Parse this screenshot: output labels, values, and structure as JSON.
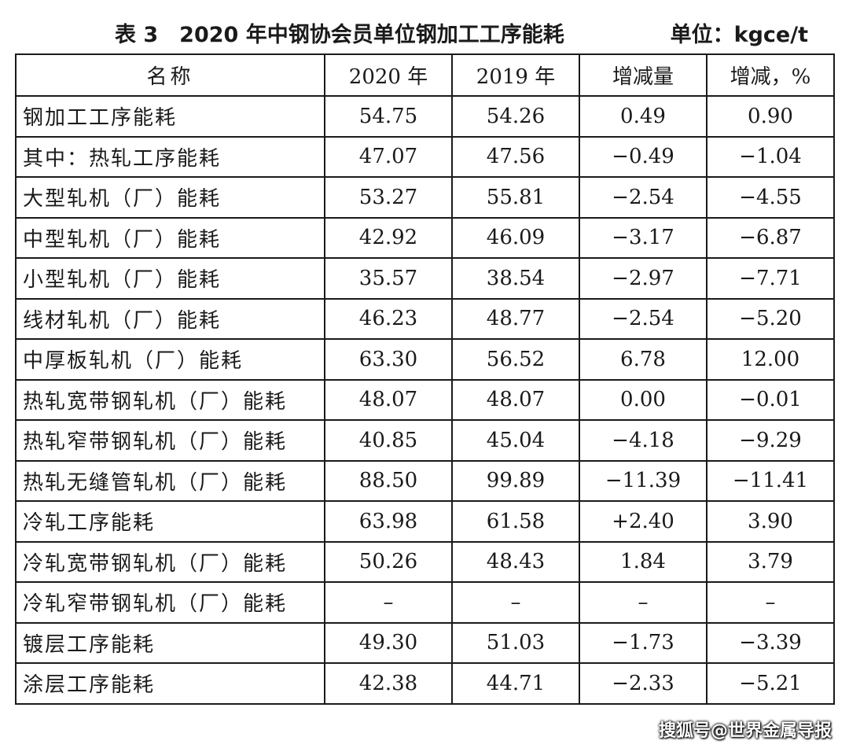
{
  "caption": {
    "title": "表 3　2020 年中钢协会员单位钢加工工序能耗",
    "unit": "单位：kgce/t"
  },
  "table": {
    "headers": [
      "名称",
      "2020 年",
      "2019 年",
      "增减量",
      "增减，%"
    ],
    "rows": [
      [
        "钢加工工序能耗",
        "54.75",
        "54.26",
        "0.49",
        "0.90"
      ],
      [
        "其中：热轧工序能耗",
        "47.07",
        "47.56",
        "−0.49",
        "−1.04"
      ],
      [
        "大型轧机（厂）能耗",
        "53.27",
        "55.81",
        "−2.54",
        "−4.55"
      ],
      [
        "中型轧机（厂）能耗",
        "42.92",
        "46.09",
        "−3.17",
        "−6.87"
      ],
      [
        "小型轧机（厂）能耗",
        "35.57",
        "38.54",
        "−2.97",
        "−7.71"
      ],
      [
        "线材轧机（厂）能耗",
        "46.23",
        "48.77",
        "−2.54",
        "−5.20"
      ],
      [
        "中厚板轧机（厂）能耗",
        "63.30",
        "56.52",
        "6.78",
        "12.00"
      ],
      [
        "热轧宽带钢轧机（厂）能耗",
        "48.07",
        "48.07",
        "0.00",
        "−0.01"
      ],
      [
        "热轧窄带钢轧机（厂）能耗",
        "40.85",
        "45.04",
        "−4.18",
        "−9.29"
      ],
      [
        "热轧无缝管轧机（厂）能耗",
        "88.50",
        "99.89",
        "−11.39",
        "−11.41"
      ],
      [
        "冷轧工序能耗",
        "63.98",
        "61.58",
        "+2.40",
        "3.90"
      ],
      [
        "冷轧宽带钢轧机（厂）能耗",
        "50.26",
        "48.43",
        "1.84",
        "3.79"
      ],
      [
        "冷轧窄带钢轧机（厂）能耗",
        "–",
        "–",
        "–",
        "–"
      ],
      [
        "镀层工序能耗",
        "49.30",
        "51.03",
        "−1.73",
        "−3.39"
      ],
      [
        "涂层工序能耗",
        "42.38",
        "44.71",
        "−2.33",
        "−5.21"
      ]
    ]
  },
  "watermark": "搜狐号@世界金属导报"
}
